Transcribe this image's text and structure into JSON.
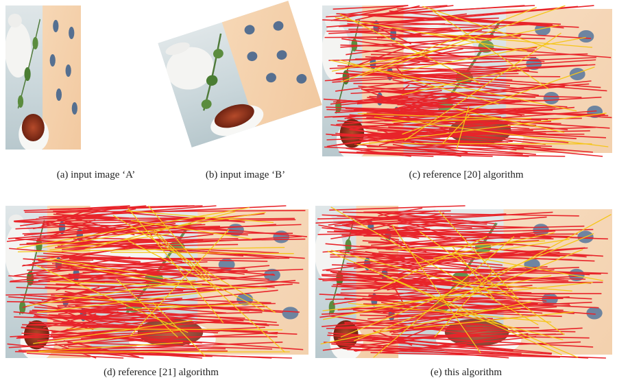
{
  "panels": [
    {
      "caption": "(a) input image ‘A’"
    },
    {
      "caption": "(b) input image ‘B’"
    },
    {
      "caption": "(c) reference [20] algorithm"
    },
    {
      "caption": "(d) reference [21] algorithm"
    },
    {
      "caption": "(e) this algorithm"
    }
  ]
}
